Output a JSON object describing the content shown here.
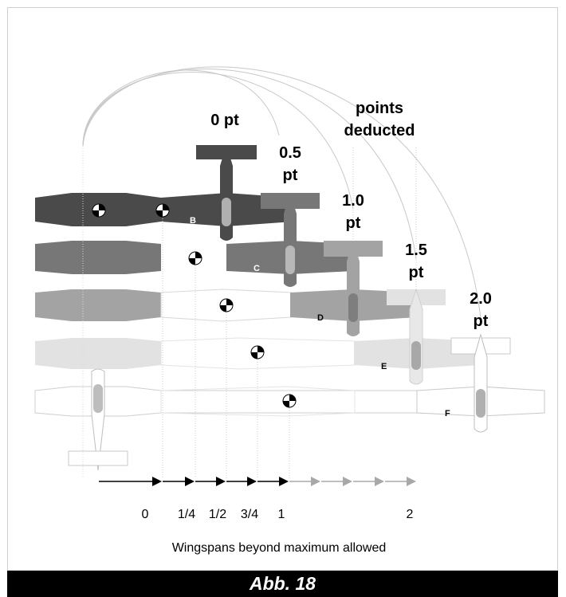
{
  "header_label": "points deducted",
  "header_lines": [
    "points",
    "deducted"
  ],
  "planes": [
    {
      "id": "B",
      "points_lines": [
        "0 pt"
      ],
      "color": "#4a4a4a",
      "label_color": "#ffffff"
    },
    {
      "id": "C",
      "points_lines": [
        "0.5",
        "pt"
      ],
      "color": "#777777",
      "label_color": "#ffffff"
    },
    {
      "id": "D",
      "points_lines": [
        "1.0",
        "pt"
      ],
      "color": "#a3a3a3",
      "label_color": "#000000"
    },
    {
      "id": "E",
      "points_lines": [
        "1.5",
        "pt"
      ],
      "color": "#d6d6d6",
      "label_color": "#000000"
    },
    {
      "id": "F",
      "points_lines": [
        "2.0",
        "pt"
      ],
      "color": "#ffffff",
      "label_color": "#000000"
    }
  ],
  "ticks": [
    "0",
    "1/4",
    "1/2",
    "3/4",
    "1",
    "2"
  ],
  "axis_title": "Wingspans beyond maximum allowed",
  "caption": "Abb. 18"
}
